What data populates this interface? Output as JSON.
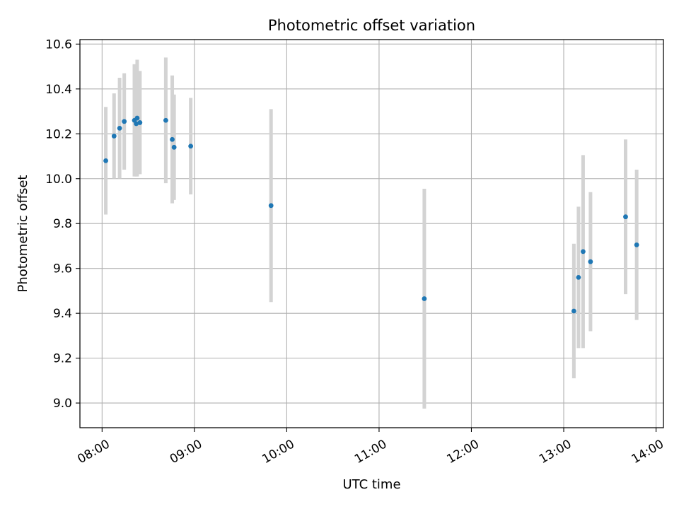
{
  "chart_data": {
    "type": "scatter",
    "title": "Photometric offset variation",
    "xlabel": "UTC time",
    "ylabel": "Photometric offset",
    "x_unit": "hours (UTC)",
    "xlim": [
      7.76,
      14.08
    ],
    "ylim": [
      8.89,
      10.62
    ],
    "grid": true,
    "legend": "none",
    "x_ticks": [
      {
        "value": 8,
        "label": "08:00"
      },
      {
        "value": 9,
        "label": "09:00"
      },
      {
        "value": 10,
        "label": "10:00"
      },
      {
        "value": 11,
        "label": "11:00"
      },
      {
        "value": 12,
        "label": "12:00"
      },
      {
        "value": 13,
        "label": "13:00"
      },
      {
        "value": 14,
        "label": "14:00"
      }
    ],
    "y_ticks": [
      {
        "value": 9.0,
        "label": "9.0"
      },
      {
        "value": 9.2,
        "label": "9.2"
      },
      {
        "value": 9.4,
        "label": "9.4"
      },
      {
        "value": 9.6,
        "label": "9.6"
      },
      {
        "value": 9.8,
        "label": "9.8"
      },
      {
        "value": 10.0,
        "label": "10.0"
      },
      {
        "value": 10.2,
        "label": "10.2"
      },
      {
        "value": 10.4,
        "label": "10.4"
      },
      {
        "value": 10.6,
        "label": "10.6"
      }
    ],
    "marker_color": "#1f77b4",
    "errorbar_color": "#d3d3d3",
    "series": [
      {
        "name": "offset",
        "points": [
          {
            "x": 8.04,
            "y": 10.08,
            "err": 0.24
          },
          {
            "x": 8.13,
            "y": 10.19,
            "err": 0.19
          },
          {
            "x": 8.19,
            "y": 10.225,
            "err": 0.225
          },
          {
            "x": 8.24,
            "y": 10.255,
            "err": 0.215
          },
          {
            "x": 8.35,
            "y": 10.26,
            "err": 0.25
          },
          {
            "x": 8.37,
            "y": 10.245,
            "err": 0.235
          },
          {
            "x": 8.38,
            "y": 10.27,
            "err": 0.26
          },
          {
            "x": 8.41,
            "y": 10.25,
            "err": 0.23
          },
          {
            "x": 8.69,
            "y": 10.26,
            "err": 0.28
          },
          {
            "x": 8.76,
            "y": 10.175,
            "err": 0.285
          },
          {
            "x": 8.78,
            "y": 10.14,
            "err": 0.235
          },
          {
            "x": 8.96,
            "y": 10.145,
            "err": 0.215
          },
          {
            "x": 9.83,
            "y": 9.88,
            "err": 0.43
          },
          {
            "x": 11.49,
            "y": 9.465,
            "err": 0.49
          },
          {
            "x": 13.11,
            "y": 9.41,
            "err": 0.3
          },
          {
            "x": 13.16,
            "y": 9.56,
            "err": 0.315
          },
          {
            "x": 13.21,
            "y": 9.675,
            "err": 0.43
          },
          {
            "x": 13.29,
            "y": 9.63,
            "err": 0.31
          },
          {
            "x": 13.67,
            "y": 9.83,
            "err": 0.345
          },
          {
            "x": 13.79,
            "y": 9.705,
            "err": 0.335
          }
        ]
      }
    ]
  }
}
